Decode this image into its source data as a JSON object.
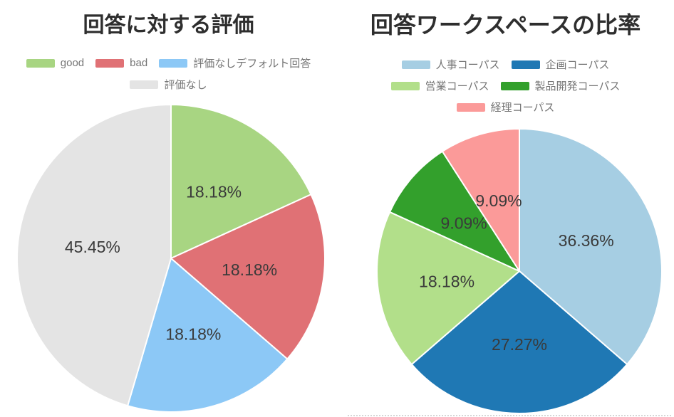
{
  "styles": {
    "background": "#ffffff",
    "title_color": "#2e2e2e",
    "legend_text_color": "#757575",
    "slice_label_color": "#3a3a3a",
    "slice_separator_color": "#ffffff"
  },
  "chart_data": [
    {
      "type": "pie",
      "title": "回答に対する評価",
      "start_angle_deg": 0,
      "direction": "clockwise",
      "legend_position": "top",
      "legend_rows": [
        [
          0,
          1,
          2
        ],
        [
          3
        ]
      ],
      "slices": [
        {
          "label": "good",
          "value": 18.18,
          "pct_label": "18.18%",
          "color": "#A8D582"
        },
        {
          "label": "bad",
          "value": 18.18,
          "pct_label": "18.18%",
          "color": "#E07175"
        },
        {
          "label": "評価なしデフォルト回答",
          "value": 18.18,
          "pct_label": "18.18%",
          "color": "#8CC8F6"
        },
        {
          "label": "評価なし",
          "value": 45.45,
          "pct_label": "45.45%",
          "color": "#E4E4E4"
        }
      ]
    },
    {
      "type": "pie",
      "title": "回答ワークスペースの比率",
      "start_angle_deg": 0,
      "direction": "clockwise",
      "legend_position": "top",
      "legend_rows": [
        [
          0,
          1
        ],
        [
          2,
          3
        ],
        [
          4
        ]
      ],
      "slices": [
        {
          "label": "人事コーパス",
          "value": 36.36,
          "pct_label": "36.36%",
          "color": "#A6CEE3"
        },
        {
          "label": "企画コーパス",
          "value": 27.27,
          "pct_label": "27.27%",
          "color": "#1F78B4"
        },
        {
          "label": "営業コーパス",
          "value": 18.18,
          "pct_label": "18.18%",
          "color": "#B2DF8A"
        },
        {
          "label": "製品開発コーパス",
          "value": 9.09,
          "pct_label": "9.09%",
          "color": "#33A02C"
        },
        {
          "label": "経理コーパス",
          "value": 9.09,
          "pct_label": "9.09%",
          "color": "#FB9A99"
        }
      ]
    }
  ]
}
